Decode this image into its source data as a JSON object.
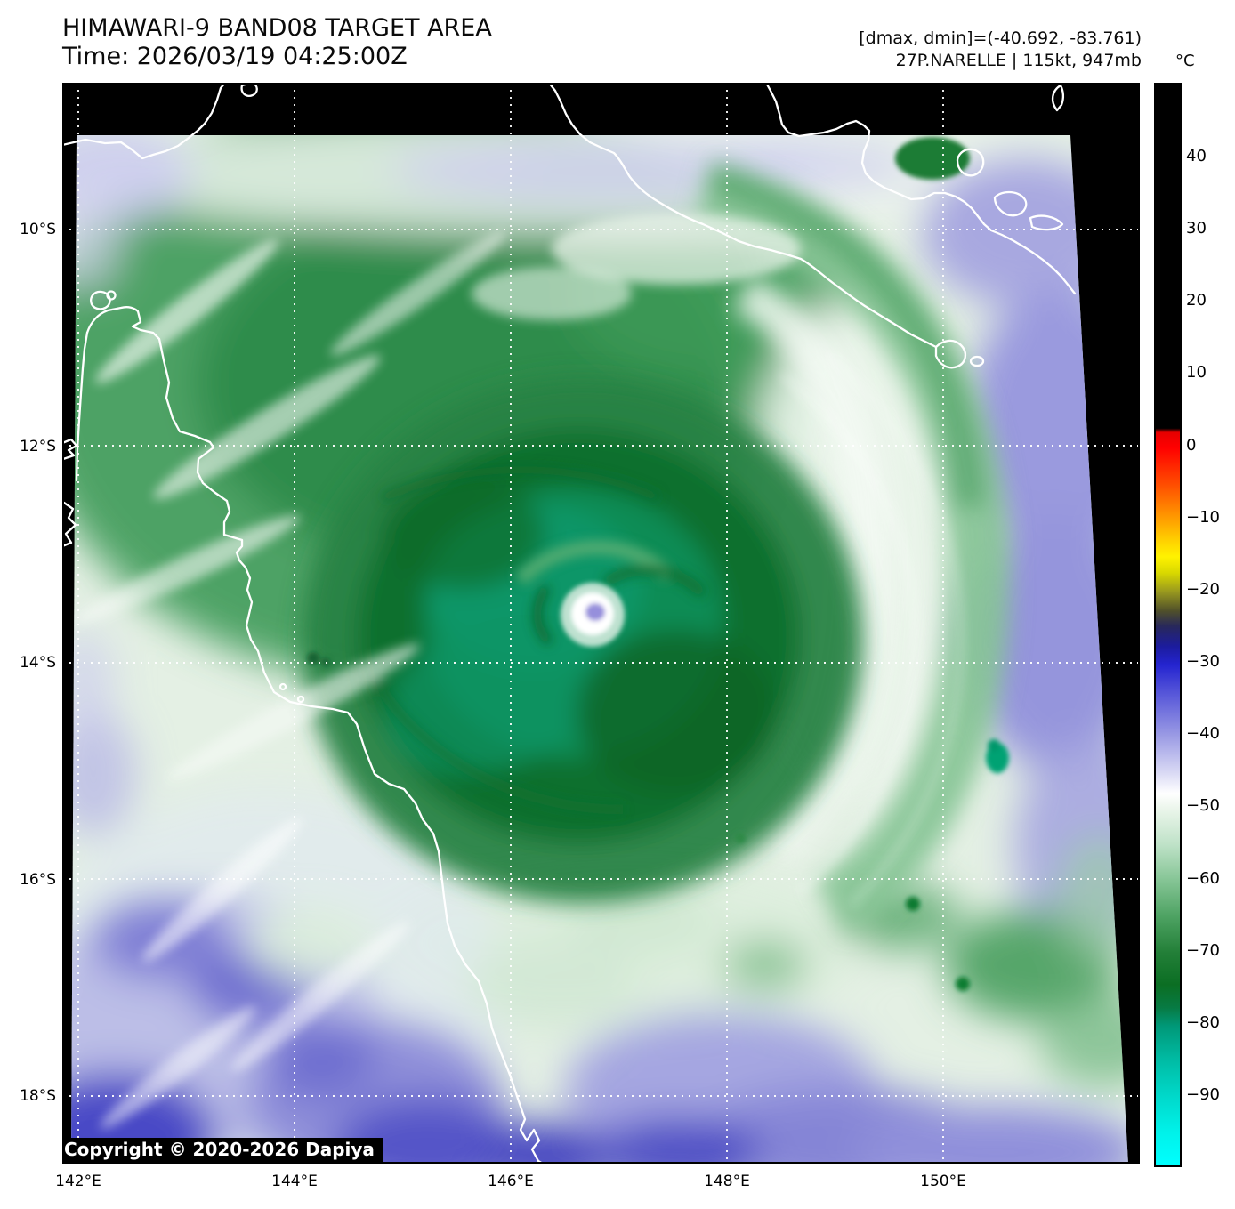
{
  "header": {
    "title": "HIMAWARI-9 BAND08 TARGET AREA",
    "time": "Time: 2026/03/19 04:25:00Z",
    "dminmax": "[dmax, dmin]=(-40.692, -83.761)",
    "storm": "27P.NARELLE | 115kt, 947mb"
  },
  "axes": {
    "lat_ticks": [
      "10°S",
      "12°S",
      "14°S",
      "16°S",
      "18°S"
    ],
    "lon_ticks": [
      "142°E",
      "144°E",
      "146°E",
      "148°E",
      "150°E"
    ]
  },
  "colorbar": {
    "unit": "°C",
    "ticks": [
      "40",
      "30",
      "20",
      "10",
      "0",
      "−10",
      "−20",
      "−30",
      "−40",
      "−50",
      "−60",
      "−70",
      "−80",
      "−90"
    ],
    "stops": [
      {
        "o": 0.0,
        "c": "#000000"
      },
      {
        "o": 0.318,
        "c": "#000000"
      },
      {
        "o": 0.322,
        "c": "#e60000"
      },
      {
        "o": 0.336,
        "c": "#ff0000"
      },
      {
        "o": 0.37,
        "c": "#ff4d00"
      },
      {
        "o": 0.402,
        "c": "#ff9e00"
      },
      {
        "o": 0.425,
        "c": "#ffd800"
      },
      {
        "o": 0.437,
        "c": "#fff200"
      },
      {
        "o": 0.452,
        "c": "#d8d800"
      },
      {
        "o": 0.469,
        "c": "#9a9a1e"
      },
      {
        "o": 0.487,
        "c": "#50502a"
      },
      {
        "o": 0.501,
        "c": "#28285a"
      },
      {
        "o": 0.52,
        "c": "#1c1c9e"
      },
      {
        "o": 0.537,
        "c": "#2424d0"
      },
      {
        "o": 0.561,
        "c": "#5252d8"
      },
      {
        "o": 0.602,
        "c": "#9a9ae4"
      },
      {
        "o": 0.636,
        "c": "#d8d8f4"
      },
      {
        "o": 0.656,
        "c": "#ffffff"
      },
      {
        "o": 0.671,
        "c": "#eaf5ea"
      },
      {
        "o": 0.703,
        "c": "#bfe2c8"
      },
      {
        "o": 0.737,
        "c": "#84c494"
      },
      {
        "o": 0.77,
        "c": "#4da262"
      },
      {
        "o": 0.803,
        "c": "#237f38"
      },
      {
        "o": 0.833,
        "c": "#0b6e23"
      },
      {
        "o": 0.854,
        "c": "#077a43"
      },
      {
        "o": 0.871,
        "c": "#009878"
      },
      {
        "o": 0.904,
        "c": "#00bda6"
      },
      {
        "o": 0.938,
        "c": "#00dacc"
      },
      {
        "o": 0.97,
        "c": "#00f2ea"
      },
      {
        "o": 1.0,
        "c": "#00ffff"
      }
    ]
  },
  "map": {
    "copyright": "Copyright © 2020-2026 Dapiya"
  }
}
